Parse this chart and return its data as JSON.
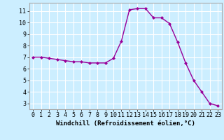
{
  "x": [
    0,
    1,
    2,
    3,
    4,
    5,
    6,
    7,
    8,
    9,
    10,
    11,
    12,
    13,
    14,
    15,
    16,
    17,
    18,
    19,
    20,
    21,
    22,
    23
  ],
  "y": [
    7.0,
    7.0,
    6.9,
    6.8,
    6.7,
    6.6,
    6.6,
    6.5,
    6.5,
    6.5,
    6.9,
    8.4,
    11.1,
    11.2,
    11.2,
    10.4,
    10.4,
    9.9,
    8.3,
    6.5,
    5.0,
    4.0,
    3.0,
    2.8
  ],
  "line_color": "#990099",
  "marker": "D",
  "markersize": 2.0,
  "linewidth": 1.0,
  "background_color": "#cceeff",
  "grid_color": "#ffffff",
  "xlabel": "Windchill (Refroidissement éolien,°C)",
  "xlabel_fontsize": 6.5,
  "tick_fontsize": 6.0,
  "xlim": [
    -0.5,
    23.5
  ],
  "ylim": [
    2.5,
    11.7
  ],
  "yticks": [
    3,
    4,
    5,
    6,
    7,
    8,
    9,
    10,
    11
  ],
  "xticks": [
    0,
    1,
    2,
    3,
    4,
    5,
    6,
    7,
    8,
    9,
    10,
    11,
    12,
    13,
    14,
    15,
    16,
    17,
    18,
    19,
    20,
    21,
    22,
    23
  ],
  "spine_color": "#aaaaaa"
}
